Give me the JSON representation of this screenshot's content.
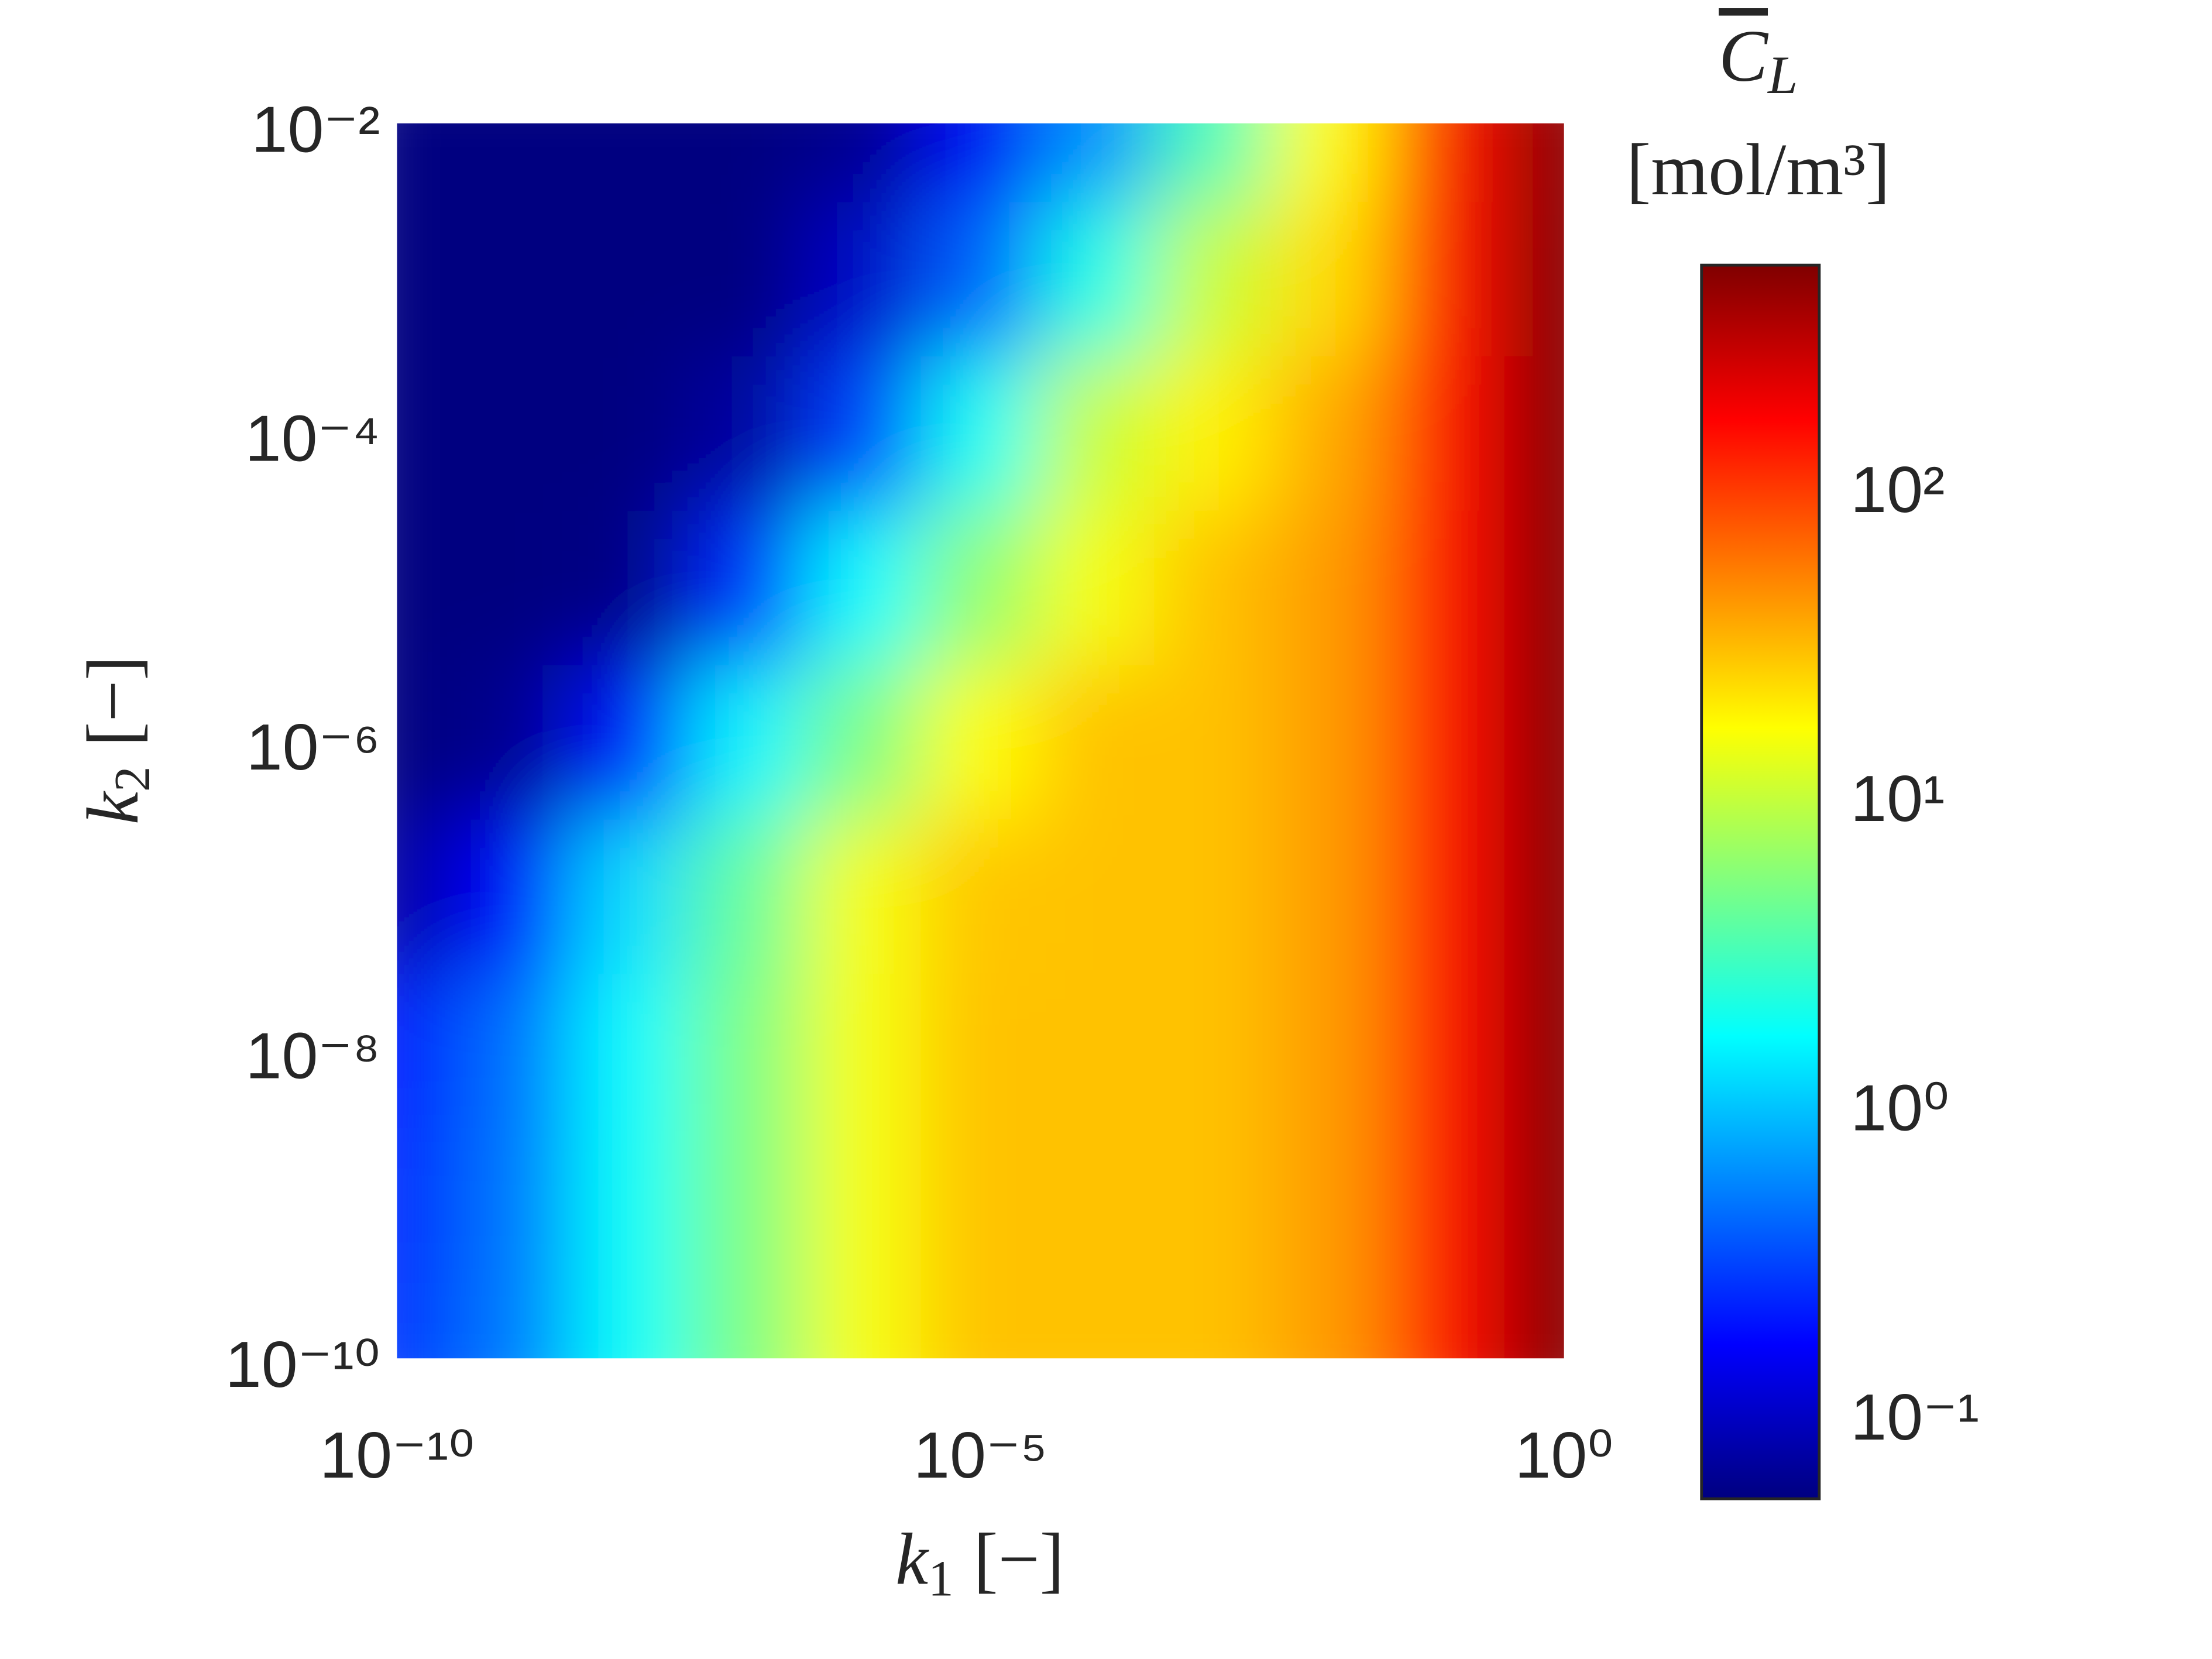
{
  "chart_data": {
    "type": "heatmap",
    "x": [
      1e-10,
      1e-09,
      1e-08,
      1e-07,
      1e-06,
      1e-05,
      0.0001,
      0.001,
      0.01,
      0.1,
      1
    ],
    "y": [
      1e-10,
      1e-09,
      1e-08,
      1e-07,
      1e-06,
      1e-05,
      0.0001,
      0.001,
      0.01
    ],
    "values": [
      [
        0.25,
        0.5,
        1.7,
        5,
        15,
        28,
        28,
        28,
        40,
        150,
        500
      ],
      [
        0.22,
        0.48,
        1.7,
        5,
        15,
        28,
        28,
        28,
        40,
        150,
        500
      ],
      [
        0.18,
        0.45,
        1.6,
        5,
        15,
        28,
        28,
        28,
        40,
        150,
        500
      ],
      [
        0.07,
        0.17,
        1.2,
        4,
        15,
        27,
        28,
        28,
        40,
        150,
        500
      ],
      [
        0.052,
        0.06,
        0.2,
        1.5,
        5,
        16,
        28,
        28,
        40,
        150,
        500
      ],
      [
        0.052,
        0.052,
        0.055,
        0.25,
        1.6,
        6,
        15,
        28,
        40,
        150,
        500
      ],
      [
        0.052,
        0.052,
        0.052,
        0.07,
        0.3,
        1.8,
        10,
        18,
        35,
        150,
        500
      ],
      [
        0.052,
        0.052,
        0.052,
        0.052,
        0.1,
        0.4,
        2,
        10,
        22,
        130,
        500
      ],
      [
        0.052,
        0.052,
        0.052,
        0.052,
        0.06,
        0.15,
        0.6,
        3,
        16,
        130,
        480
      ]
    ],
    "xlim": [
      1e-10,
      1
    ],
    "ylim": [
      1e-10,
      0.01
    ],
    "xscale": "log",
    "yscale": "log",
    "xticks": [
      {
        "value": 1e-10,
        "label": "10⁻¹⁰"
      },
      {
        "value": 1e-05,
        "label": "10⁻⁵"
      },
      {
        "value": 1,
        "label": "10⁰"
      }
    ],
    "yticks": [
      {
        "value": 1e-10,
        "label": "10⁻¹⁰"
      },
      {
        "value": 1e-08,
        "label": "10⁻⁸"
      },
      {
        "value": 1e-06,
        "label": "10⁻⁶"
      },
      {
        "value": 0.0001,
        "label": "10⁻⁴"
      },
      {
        "value": 0.01,
        "label": "10⁻²"
      }
    ],
    "xlabel": {
      "symbol": "k",
      "subscript": "1",
      "unit": "[−]"
    },
    "ylabel": {
      "symbol": "k",
      "subscript": "2",
      "unit": "[−]"
    },
    "colormap": "jet",
    "clim": [
      0.052,
      508
    ],
    "cscale": "log",
    "cticks": [
      {
        "value": 0.1,
        "label": "10⁻¹"
      },
      {
        "value": 1,
        "label": "10⁰"
      },
      {
        "value": 10,
        "label": "10¹"
      },
      {
        "value": 100,
        "label": "10²"
      }
    ],
    "cticks_minor": true,
    "colorbar_title": {
      "symbol": "C",
      "subscript": "L",
      "unit": "[mol/m³]"
    }
  }
}
